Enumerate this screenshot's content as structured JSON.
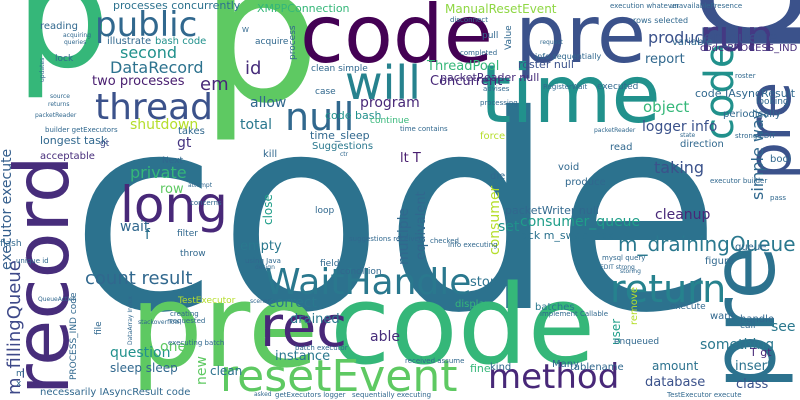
{
  "words": [
    {
      "text": "code",
      "color": "#2c728e"
    },
    {
      "text": "pre",
      "color": "#3b528b"
    },
    {
      "text": "p",
      "color": "#5ec962"
    },
    {
      "text": "code",
      "color": "#440154"
    },
    {
      "text": "pre",
      "color": "#3b528b"
    },
    {
      "text": "pre",
      "color": "#5ec962"
    },
    {
      "text": "code",
      "color": "#35b779"
    },
    {
      "text": "pre",
      "color": "#2c728e"
    },
    {
      "text": "record",
      "color": "#472d7b"
    },
    {
      "text": "time",
      "color": "#21918c"
    },
    {
      "text": "code",
      "color": "#21918c"
    },
    {
      "text": "pre",
      "color": "#3b528b"
    },
    {
      "text": "p",
      "color": "#35b779"
    },
    {
      "text": "will",
      "color": "#26828e"
    },
    {
      "text": "run",
      "color": "#443983"
    },
    {
      "text": "public",
      "color": "#31688e"
    },
    {
      "text": "thread",
      "color": "#3b528b"
    },
    {
      "text": "null",
      "color": "#31688e"
    },
    {
      "text": "long",
      "color": "#482878"
    },
    {
      "text": "return",
      "color": "#26828e"
    },
    {
      "text": "WaitHandle",
      "color": "#2a788e"
    },
    {
      "text": "rec",
      "color": "#482878"
    },
    {
      "text": "resetEvent",
      "color": "#5ec962"
    },
    {
      "text": "method",
      "color": "#482878"
    },
    {
      "text": "producer_queue",
      "color": "#3b528b"
    },
    {
      "text": "count result",
      "color": "#31688e"
    },
    {
      "text": "m_drainingQueue",
      "color": "#2a788e"
    },
    {
      "text": "consumer_queue",
      "color": "#1f9e89"
    },
    {
      "text": "m_fillingQueue",
      "color": "#3e4989"
    },
    {
      "text": "executor execute",
      "color": "#355f8d"
    },
    {
      "text": "DataRecord",
      "color": "#2c728e"
    },
    {
      "text": "second",
      "color": "#21918c"
    },
    {
      "text": "id",
      "color": "#472d7b"
    },
    {
      "text": "em",
      "color": "#482878"
    },
    {
      "text": "two processes",
      "color": "#481d6f"
    },
    {
      "text": "shutdown",
      "color": "#b5de2b"
    },
    {
      "text": "program",
      "color": "#482878"
    },
    {
      "text": "allow",
      "color": "#31688e"
    },
    {
      "text": "total",
      "color": "#2a788e"
    },
    {
      "text": "gt",
      "color": "#453581"
    },
    {
      "text": "private",
      "color": "#35b779"
    },
    {
      "text": "row",
      "color": "#5ec962"
    },
    {
      "text": "empty",
      "color": "#2a788e"
    },
    {
      "text": "wait",
      "color": "#31688e"
    },
    {
      "text": "f",
      "color": "#2c728e"
    },
    {
      "text": "correct",
      "color": "#2a788e"
    },
    {
      "text": "drained",
      "color": "#2a788e"
    },
    {
      "text": "instance",
      "color": "#2a788e"
    },
    {
      "text": "question",
      "color": "#21918c"
    },
    {
      "text": "one",
      "color": "#5ec962"
    },
    {
      "text": "sleep sleep",
      "color": "#31688e"
    },
    {
      "text": "new",
      "color": "#5ec962"
    },
    {
      "text": "clean",
      "color": "#2c728e"
    },
    {
      "text": "able",
      "color": "#472d7b"
    },
    {
      "text": "stop",
      "color": "#2c728e"
    },
    {
      "text": "multiple",
      "color": "#31688e"
    },
    {
      "text": "equivalent",
      "color": "#31688e"
    },
    {
      "text": "lt T",
      "color": "#481d6f"
    },
    {
      "text": "consumer",
      "color": "#b5de2b"
    },
    {
      "text": "set",
      "color": "#21918c"
    },
    {
      "text": "Concurrent",
      "color": "#482878"
    },
    {
      "text": "ThreadPool",
      "color": "#35b779"
    },
    {
      "text": "packetReader null",
      "color": "#472d7b"
    },
    {
      "text": "roster null",
      "color": "#3b528b"
    },
    {
      "text": "report",
      "color": "#31688e"
    },
    {
      "text": "logger info",
      "color": "#3b528b"
    },
    {
      "text": "object",
      "color": "#35b779"
    },
    {
      "text": "taking",
      "color": "#3b528b"
    },
    {
      "text": "simple way",
      "color": "#31688e"
    },
    {
      "text": "something",
      "color": "#2a788e"
    },
    {
      "text": "see",
      "color": "#2a788e"
    },
    {
      "text": "insert",
      "color": "#2c728e"
    },
    {
      "text": "database",
      "color": "#3b528b"
    },
    {
      "text": "class",
      "color": "#3b528b"
    },
    {
      "text": "amount",
      "color": "#2c728e"
    },
    {
      "text": "cleanup",
      "color": "#482878"
    },
    {
      "text": "user",
      "color": "#1f9e89"
    },
    {
      "text": "lock m_swapLock",
      "color": "#2c728e"
    },
    {
      "text": "packetWriter null",
      "color": "#31688e"
    },
    {
      "text": "XMPPConnection",
      "color": "#35b779"
    },
    {
      "text": "ManualResetEvent",
      "color": "#8fd744"
    },
    {
      "text": "processes concurrently",
      "color": "#2c728e"
    },
    {
      "text": "time_sleep",
      "color": "#31688e"
    },
    {
      "text": "code bash",
      "color": "#21918c"
    },
    {
      "text": "code IAsyncResult",
      "color": "#31688e"
    },
    {
      "text": "code PROCESS_IND",
      "color": "#472d7b"
    },
    {
      "text": "Suggestions",
      "color": "#2a788e"
    },
    {
      "text": "bash code",
      "color": "#21918c"
    },
    {
      "text": "reading",
      "color": "#31688e"
    },
    {
      "text": "illustrate",
      "color": "#31688e"
    },
    {
      "text": "longest task",
      "color": "#31688e"
    },
    {
      "text": "acceptable",
      "color": "#472d7b"
    },
    {
      "text": "Next",
      "color": "#31688e"
    },
    {
      "text": "takes",
      "color": "#31688e"
    },
    {
      "text": "gt",
      "color": "#3e4989"
    },
    {
      "text": "fine",
      "color": "#35b779"
    },
    {
      "text": "Many",
      "color": "#31688e"
    },
    {
      "text": "kind",
      "color": "#31688e"
    },
    {
      "text": "tablename",
      "color": "#31688e"
    },
    {
      "text": "T gt",
      "color": "#482878"
    },
    {
      "text": "display",
      "color": "#35b779"
    },
    {
      "text": "batches",
      "color": "#2a788e"
    },
    {
      "text": "handle",
      "color": "#31688e"
    },
    {
      "text": "want",
      "color": "#31688e"
    },
    {
      "text": "call",
      "color": "#31688e"
    },
    {
      "text": "remove",
      "color": "#b5de2b"
    },
    {
      "text": "execute",
      "color": "#31688e"
    },
    {
      "text": "figure",
      "color": "#31688e"
    },
    {
      "text": "queue",
      "color": "#31688e"
    },
    {
      "text": "bool",
      "color": "#31688e"
    },
    {
      "text": "direction",
      "color": "#31688e"
    },
    {
      "text": "periodically",
      "color": "#31688e"
    },
    {
      "text": "looking",
      "color": "#31688e"
    },
    {
      "text": "variable",
      "color": "#31688e"
    },
    {
      "text": "produce",
      "color": "#31688e"
    },
    {
      "text": "void",
      "color": "#31688e"
    },
    {
      "text": "read",
      "color": "#31688e"
    },
    {
      "text": "force",
      "color": "#b5de2b"
    },
    {
      "text": "die",
      "color": "#31688e"
    },
    {
      "text": "kill",
      "color": "#31688e"
    },
    {
      "text": "loop",
      "color": "#31688e"
    },
    {
      "text": "close",
      "color": "#1f9e89"
    },
    {
      "text": "throw",
      "color": "#31688e"
    },
    {
      "text": "filter",
      "color": "#31688e"
    },
    {
      "text": "field",
      "color": "#31688e"
    },
    {
      "text": "condition",
      "color": "#31688e"
    },
    {
      "text": "flash",
      "color": "#31688e"
    },
    {
      "text": "acquire",
      "color": "#31688e"
    },
    {
      "text": "lock",
      "color": "#31688e"
    },
    {
      "text": "pull",
      "color": "#31688e"
    },
    {
      "text": "process",
      "color": "#31688e"
    },
    {
      "text": "case",
      "color": "#31688e"
    },
    {
      "text": "continue",
      "color": "#35b779"
    },
    {
      "text": "executed",
      "color": "#31688e"
    },
    {
      "text": "Value",
      "color": "#31688e"
    },
    {
      "text": "enqueued",
      "color": "#31688e"
    },
    {
      "text": "clean simple",
      "color": "#31688e"
    },
    {
      "text": "info sequentially",
      "color": "#31688e"
    },
    {
      "text": "rows selected",
      "color": "#31688e"
    },
    {
      "text": "execution whatever",
      "color": "#31688e"
    },
    {
      "text": "unavailablePresence",
      "color": "#31688e"
    },
    {
      "text": "disconnect",
      "color": "#31688e"
    },
    {
      "text": "completed",
      "color": "#31688e"
    },
    {
      "text": "advises",
      "color": "#31688e"
    },
    {
      "text": "RegisterWait",
      "color": "#31688e"
    },
    {
      "text": "roster",
      "color": "#31688e"
    },
    {
      "text": "processing",
      "color": "#31688e"
    },
    {
      "text": "builder getExecutors",
      "color": "#31688e"
    },
    {
      "text": "executor builder",
      "color": "#31688e"
    },
    {
      "text": "strong EDIT",
      "color": "#31688e"
    },
    {
      "text": "pass",
      "color": "#31688e"
    },
    {
      "text": "time contains",
      "color": "#31688e"
    },
    {
      "text": "packetReader",
      "color": "#31688e"
    },
    {
      "text": "attempt",
      "color": "#31688e"
    },
    {
      "text": "concerns",
      "color": "#31688e"
    },
    {
      "text": "using Java",
      "color": "#31688e"
    },
    {
      "text": "design",
      "color": "#31688e"
    },
    {
      "text": "suggestions received",
      "color": "#31688e"
    },
    {
      "text": "info executing",
      "color": "#31688e"
    },
    {
      "text": "checked",
      "color": "#31688e"
    },
    {
      "text": "mysql query",
      "color": "#31688e"
    },
    {
      "text": "EDIT strong",
      "color": "#31688e"
    },
    {
      "text": "storing",
      "color": "#31688e"
    },
    {
      "text": "TestExecutor",
      "color": "#b5de2b"
    },
    {
      "text": "creating",
      "color": "#31688e"
    },
    {
      "text": "requested",
      "color": "#31688e"
    },
    {
      "text": "executing batch",
      "color": "#31688e"
    },
    {
      "text": "stackoverflow",
      "color": "#31688e"
    },
    {
      "text": "scenario",
      "color": "#31688e"
    },
    {
      "text": "implement Callable",
      "color": "#31688e"
    },
    {
      "text": "batch executor",
      "color": "#31688e"
    },
    {
      "text": "received assume",
      "color": "#31688e"
    },
    {
      "text": "sequentially executing",
      "color": "#31688e"
    },
    {
      "text": "getExecutors logger",
      "color": "#31688e"
    },
    {
      "text": "asked",
      "color": "#31688e"
    },
    {
      "text": "necessarily IAsyncResult code",
      "color": "#31688e"
    },
    {
      "text": "TestExecutor execute",
      "color": "#31688e"
    },
    {
      "text": "unique id",
      "color": "#31688e"
    },
    {
      "text": "QueueAction",
      "color": "#31688e"
    },
    {
      "text": "PROCESS_IND code",
      "color": "#31688e"
    },
    {
      "text": "DataArray Index",
      "color": "#31688e"
    },
    {
      "text": "file",
      "color": "#31688e"
    },
    {
      "text": "request",
      "color": "#31688e"
    },
    {
      "text": "queries",
      "color": "#31688e"
    },
    {
      "text": "updates",
      "color": "#31688e"
    },
    {
      "text": "source",
      "color": "#31688e"
    },
    {
      "text": "returns",
      "color": "#31688e"
    },
    {
      "text": "packetReader",
      "color": "#31688e"
    },
    {
      "text": "acquiring",
      "color": "#31688e"
    },
    {
      "text": "state",
      "color": "#31688e"
    },
    {
      "text": "ctr",
      "color": "#31688e"
    },
    {
      "text": "W",
      "color": "#31688e"
    },
    {
      "text": "m",
      "color": "#31688e"
    },
    {
      "text": "x",
      "color": "#31688e"
    }
  ]
}
